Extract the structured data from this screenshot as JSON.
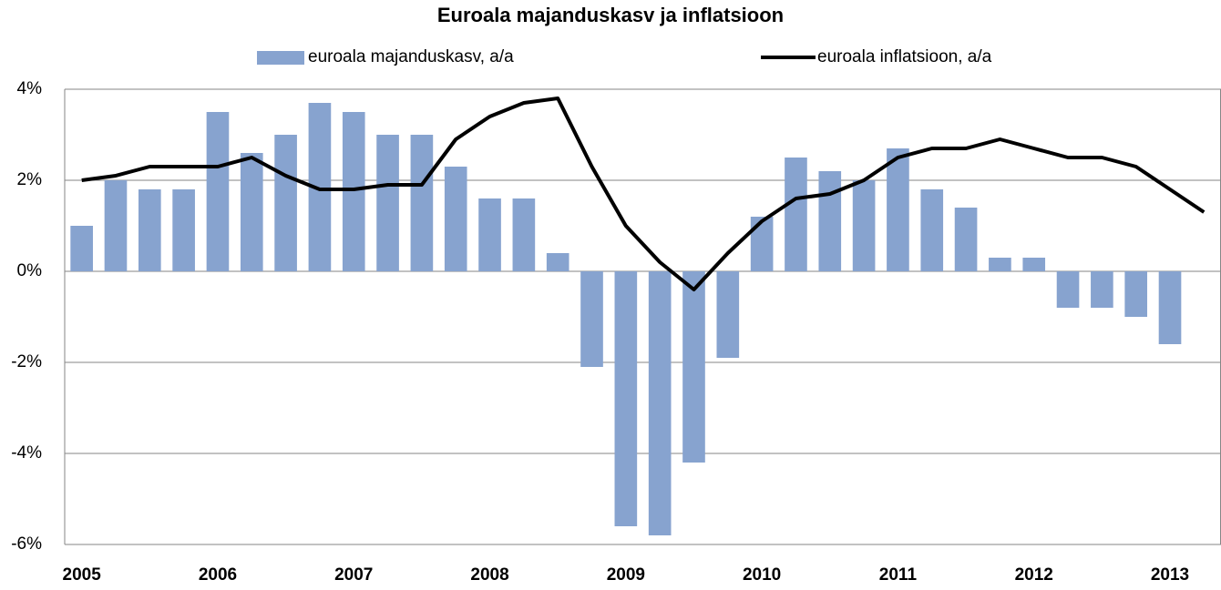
{
  "chart_data": {
    "type": "bar-line",
    "title": "Euroala majanduskasv ja inflatsioon",
    "categories": [
      "2005",
      null,
      null,
      null,
      "2006",
      null,
      null,
      null,
      "2007",
      null,
      null,
      null,
      "2008",
      null,
      null,
      null,
      "2009",
      null,
      null,
      null,
      "2010",
      null,
      null,
      null,
      "2011",
      null,
      null,
      null,
      "2012",
      null,
      null,
      null,
      "2013",
      null
    ],
    "series": [
      {
        "name": "euroala majanduskasv, a/a",
        "type": "bar",
        "color": "#87a3cf",
        "values": [
          1.0,
          2.0,
          1.8,
          1.8,
          3.5,
          2.6,
          3.0,
          3.7,
          3.5,
          3.0,
          3.0,
          2.3,
          1.6,
          1.6,
          0.4,
          -2.1,
          -5.6,
          -5.8,
          -4.2,
          -1.9,
          1.2,
          2.5,
          2.2,
          2.0,
          2.7,
          1.8,
          1.4,
          0.3,
          0.3,
          -0.8,
          -0.8,
          -1.0,
          -1.6,
          null
        ]
      },
      {
        "name": "euroala inflatsioon, a/a",
        "type": "line",
        "color": "#000000",
        "values": [
          2.0,
          2.1,
          2.3,
          2.3,
          2.3,
          2.5,
          2.1,
          1.8,
          1.8,
          1.9,
          1.9,
          2.9,
          3.4,
          3.7,
          3.8,
          2.3,
          1.0,
          0.2,
          -0.4,
          0.4,
          1.1,
          1.6,
          1.7,
          2.0,
          2.5,
          2.7,
          2.7,
          2.9,
          2.7,
          2.5,
          2.5,
          2.3,
          1.8,
          1.3
        ]
      }
    ],
    "ylim": [
      -6,
      4
    ],
    "yticks": [
      {
        "value": -6,
        "label": "-6%"
      },
      {
        "value": -4,
        "label": "-4%"
      },
      {
        "value": -2,
        "label": "-2%"
      },
      {
        "value": 0,
        "label": "0%"
      },
      {
        "value": 2,
        "label": "2%"
      },
      {
        "value": 4,
        "label": "4%"
      }
    ],
    "grid": true
  }
}
